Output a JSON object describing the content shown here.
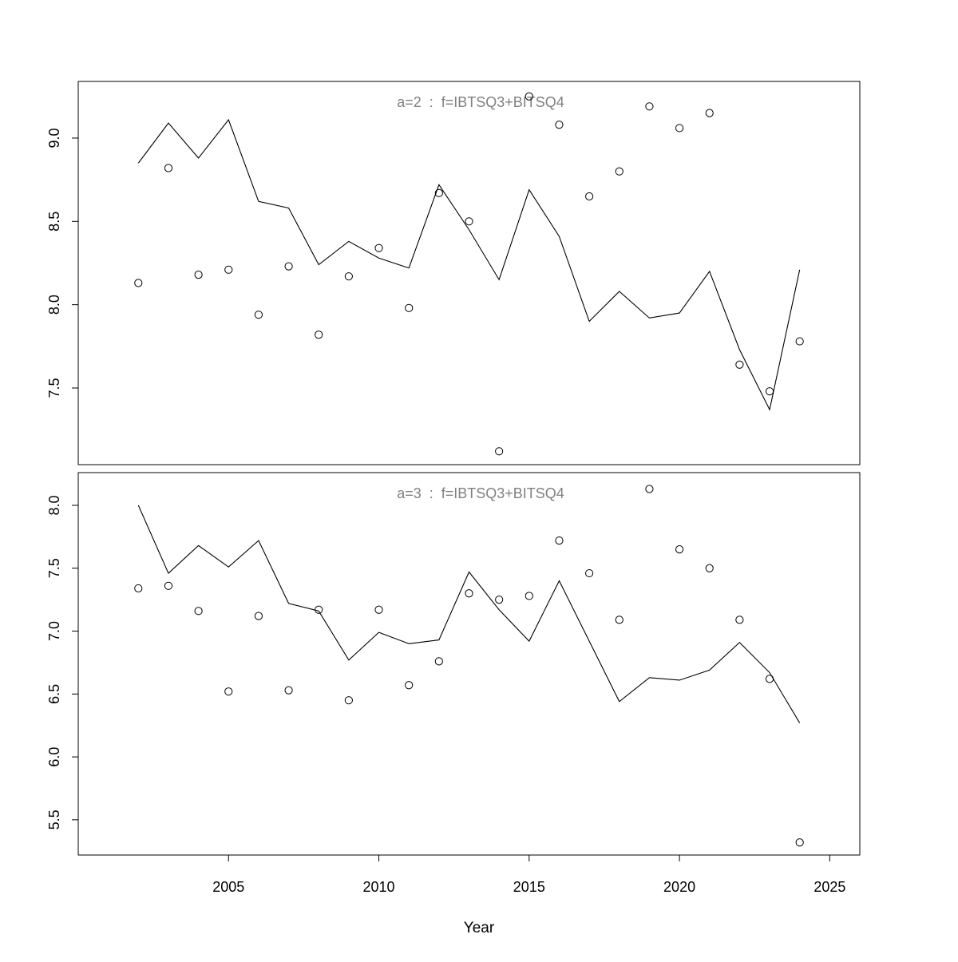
{
  "chart_data": {
    "type": "line",
    "xlabel": "Year",
    "xlim": [
      2000,
      2026
    ],
    "xticks": [
      2005,
      2010,
      2015,
      2020,
      2025
    ],
    "x": [
      2002,
      2003,
      2004,
      2005,
      2006,
      2007,
      2008,
      2009,
      2010,
      2011,
      2012,
      2013,
      2014,
      2015,
      2016,
      2017,
      2018,
      2019,
      2020,
      2021,
      2022,
      2023,
      2024
    ],
    "panels": [
      {
        "title": "a=2  :  f=IBTSQ3+BITSQ4",
        "ylim": [
          7.04,
          9.34
        ],
        "yticks": [
          7.5,
          8.0,
          8.5,
          9.0
        ],
        "line_values": [
          8.85,
          9.09,
          8.88,
          9.11,
          8.62,
          8.58,
          8.24,
          8.38,
          8.28,
          8.22,
          8.72,
          8.45,
          8.15,
          8.69,
          8.41,
          7.9,
          8.08,
          7.92,
          7.95,
          8.2,
          7.73,
          7.37,
          8.21
        ],
        "point_values": [
          8.13,
          8.82,
          8.18,
          8.21,
          7.94,
          8.23,
          7.82,
          8.17,
          8.34,
          7.98,
          8.67,
          8.5,
          7.12,
          9.25,
          9.08,
          8.65,
          8.8,
          9.19,
          9.06,
          9.15,
          7.64,
          7.48,
          7.78
        ]
      },
      {
        "title": "a=3  :  f=IBTSQ3+BITSQ4",
        "ylim": [
          5.22,
          8.26
        ],
        "yticks": [
          5.5,
          6.0,
          6.5,
          7.0,
          7.5,
          8.0
        ],
        "line_values": [
          8.0,
          7.46,
          7.68,
          7.51,
          7.72,
          7.22,
          7.16,
          6.77,
          6.99,
          6.9,
          6.93,
          7.47,
          7.17,
          6.92,
          7.4,
          6.92,
          6.44,
          6.63,
          6.61,
          6.69,
          6.91,
          6.67,
          6.27
        ],
        "point_values": [
          7.34,
          7.36,
          7.16,
          6.52,
          7.12,
          6.53,
          7.17,
          6.45,
          7.17,
          6.57,
          6.76,
          7.3,
          7.25,
          7.28,
          7.72,
          7.46,
          7.09,
          8.13,
          7.65,
          7.5,
          7.09,
          6.62,
          5.32
        ]
      }
    ]
  }
}
